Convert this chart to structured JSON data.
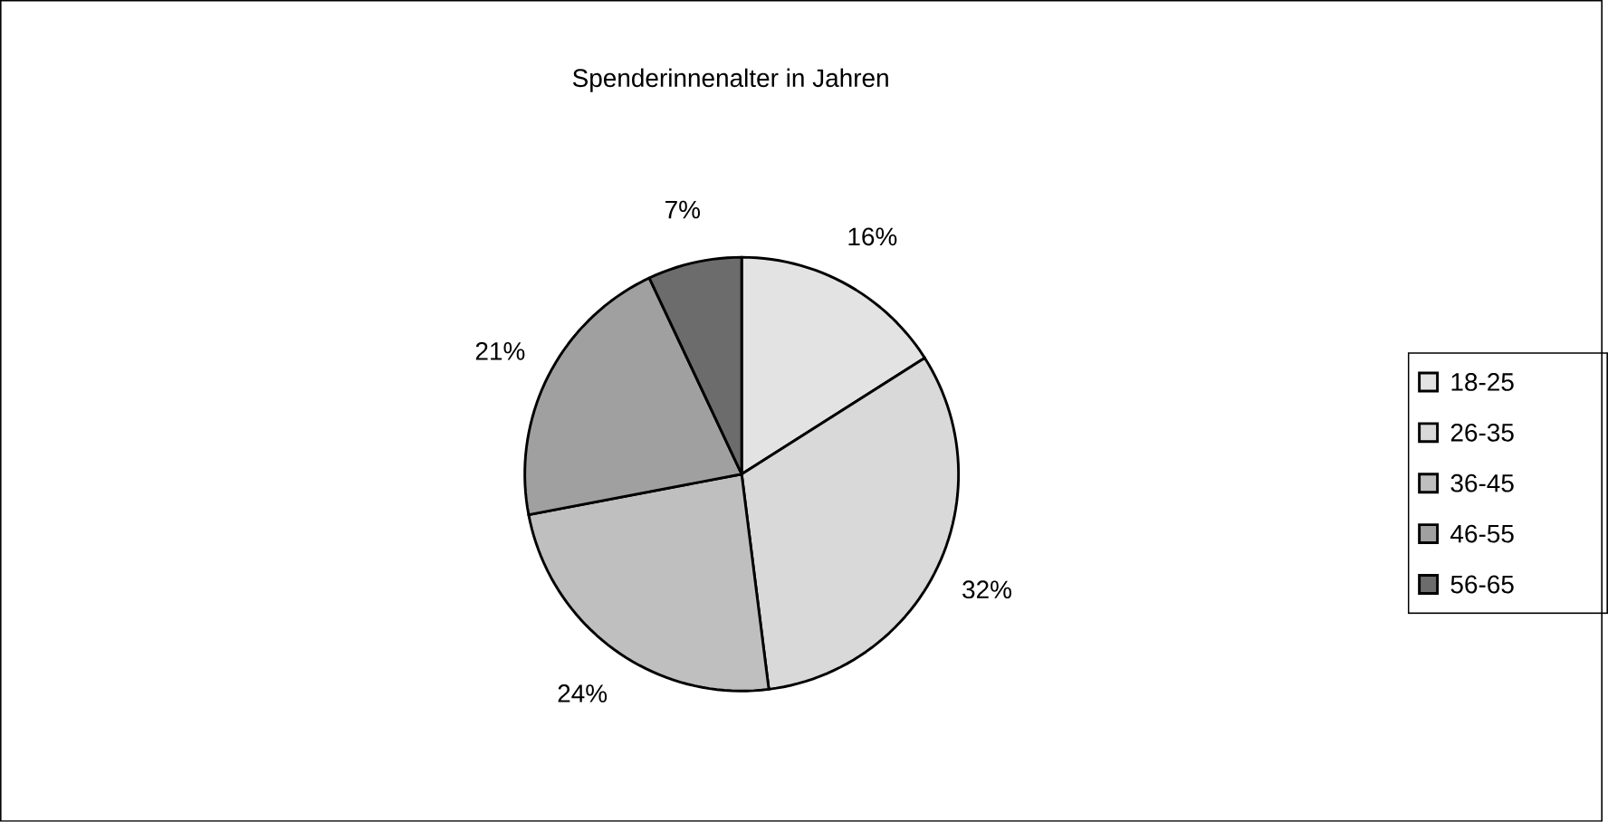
{
  "chart_data": {
    "type": "pie",
    "title": "Spenderinnenalter in Jahren",
    "categories": [
      "18-25",
      "26-35",
      "36-45",
      "46-55",
      "56-65"
    ],
    "values": [
      16,
      32,
      24,
      21,
      7
    ],
    "value_labels": [
      "16%",
      "32%",
      "24%",
      "21%",
      "7%"
    ],
    "colors": [
      "#e3e3e3",
      "#d9d9d9",
      "#bfbfbf",
      "#a0a0a0",
      "#6c6c6c"
    ],
    "legend": "right"
  }
}
